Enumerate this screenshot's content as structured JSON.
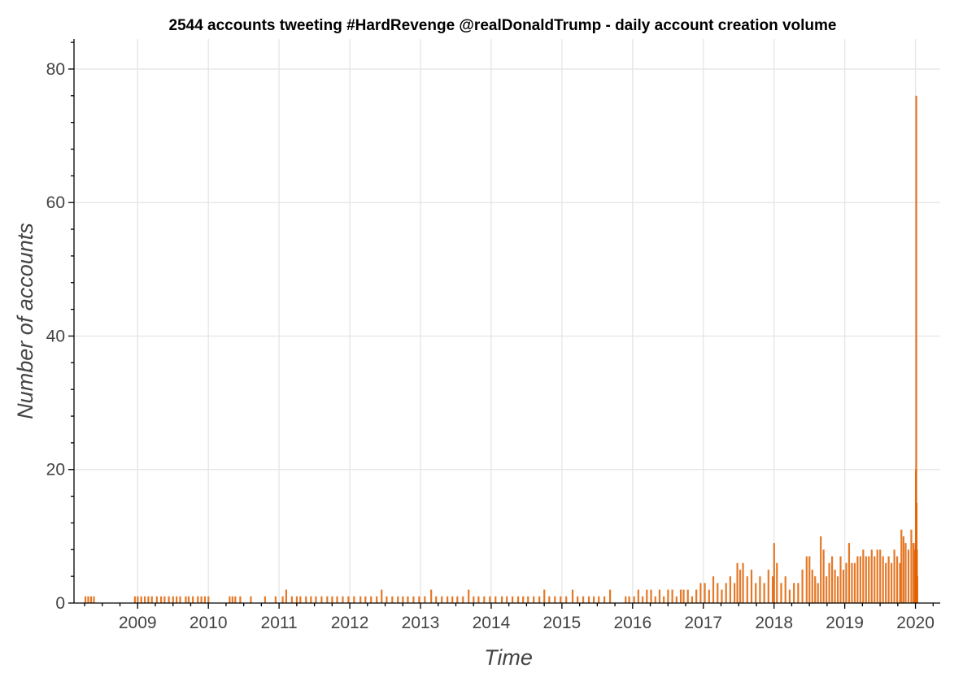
{
  "chart_data": {
    "type": "bar",
    "title": "2544 accounts tweeting #HardRevenge @realDonaldTrump - daily account creation volume",
    "xlabel": "Time",
    "ylabel": "Number of accounts",
    "x_unit": "year (fractional)",
    "xlim": [
      2008.1,
      2020.35
    ],
    "ylim": [
      0,
      84.5
    ],
    "x_ticks": [
      2009,
      2010,
      2011,
      2012,
      2013,
      2014,
      2015,
      2016,
      2017,
      2018,
      2019,
      2020
    ],
    "x_tick_labels": [
      "2009",
      "2010",
      "2011",
      "2012",
      "2013",
      "2014",
      "2015",
      "2016",
      "2017",
      "2018",
      "2019",
      "2020"
    ],
    "y_ticks": [
      0,
      20,
      40,
      60,
      80
    ],
    "y_tick_labels": [
      "0",
      "20",
      "40",
      "60",
      "80"
    ],
    "grid": true,
    "legend": "none",
    "bar_color": "#e06000",
    "series": [
      {
        "name": "daily account creation",
        "x": [
          2008.26,
          2008.3,
          2008.34,
          2008.38,
          2008.96,
          2009.0,
          2009.05,
          2009.1,
          2009.15,
          2009.2,
          2009.27,
          2009.33,
          2009.38,
          2009.44,
          2009.5,
          2009.55,
          2009.6,
          2009.68,
          2009.72,
          2009.78,
          2009.85,
          2009.9,
          2009.95,
          2010.0,
          2010.3,
          2010.34,
          2010.38,
          2010.45,
          2010.6,
          2010.8,
          2010.95,
          2011.05,
          2011.1,
          2011.18,
          2011.25,
          2011.3,
          2011.38,
          2011.45,
          2011.52,
          2011.6,
          2011.68,
          2011.75,
          2011.82,
          2011.9,
          2011.98,
          2012.06,
          2012.15,
          2012.22,
          2012.3,
          2012.38,
          2012.45,
          2012.52,
          2012.6,
          2012.68,
          2012.75,
          2012.82,
          2012.9,
          2012.98,
          2013.06,
          2013.15,
          2013.22,
          2013.3,
          2013.38,
          2013.45,
          2013.52,
          2013.6,
          2013.68,
          2013.75,
          2013.82,
          2013.9,
          2013.98,
          2014.06,
          2014.15,
          2014.22,
          2014.3,
          2014.38,
          2014.45,
          2014.52,
          2014.6,
          2014.68,
          2014.75,
          2014.82,
          2014.9,
          2014.98,
          2015.06,
          2015.15,
          2015.22,
          2015.3,
          2015.38,
          2015.45,
          2015.52,
          2015.6,
          2015.68,
          2015.9,
          2015.95,
          2016.02,
          2016.08,
          2016.14,
          2016.2,
          2016.26,
          2016.32,
          2016.38,
          2016.44,
          2016.5,
          2016.56,
          2016.62,
          2016.68,
          2016.72,
          2016.78,
          2016.84,
          2016.9,
          2016.96,
          2017.02,
          2017.08,
          2017.14,
          2017.2,
          2017.26,
          2017.32,
          2017.38,
          2017.44,
          2017.48,
          2017.52,
          2017.56,
          2017.62,
          2017.68,
          2017.74,
          2017.8,
          2017.86,
          2017.92,
          2017.98,
          2018.0,
          2018.04,
          2018.1,
          2018.16,
          2018.22,
          2018.28,
          2018.34,
          2018.4,
          2018.46,
          2018.5,
          2018.54,
          2018.58,
          2018.62,
          2018.66,
          2018.7,
          2018.74,
          2018.78,
          2018.82,
          2018.86,
          2018.9,
          2018.94,
          2018.98,
          2019.02,
          2019.06,
          2019.1,
          2019.14,
          2019.18,
          2019.22,
          2019.26,
          2019.3,
          2019.34,
          2019.38,
          2019.42,
          2019.46,
          2019.5,
          2019.54,
          2019.58,
          2019.62,
          2019.66,
          2019.7,
          2019.74,
          2019.78,
          2019.8,
          2019.83,
          2019.86,
          2019.9,
          2019.94,
          2019.97,
          2019.99,
          2020.0,
          2020.005,
          2020.01,
          2020.015,
          2020.02,
          2020.025
        ],
        "values": [
          1,
          1,
          1,
          1,
          1,
          1,
          1,
          1,
          1,
          1,
          1,
          1,
          1,
          1,
          1,
          1,
          1,
          1,
          1,
          1,
          1,
          1,
          1,
          1,
          1,
          1,
          1,
          1,
          1,
          1,
          1,
          1,
          2,
          1,
          1,
          1,
          1,
          1,
          1,
          1,
          1,
          1,
          1,
          1,
          1,
          1,
          1,
          1,
          1,
          1,
          2,
          1,
          1,
          1,
          1,
          1,
          1,
          1,
          1,
          2,
          1,
          1,
          1,
          1,
          1,
          1,
          2,
          1,
          1,
          1,
          1,
          1,
          1,
          1,
          1,
          1,
          1,
          1,
          1,
          1,
          2,
          1,
          1,
          1,
          1,
          2,
          1,
          1,
          1,
          1,
          1,
          1,
          2,
          1,
          1,
          1,
          2,
          1,
          2,
          2,
          1,
          2,
          1,
          2,
          2,
          1,
          2,
          2,
          2,
          1,
          2,
          3,
          3,
          2,
          4,
          3,
          2,
          3,
          4,
          3,
          6,
          5,
          6,
          4,
          5,
          3,
          4,
          3,
          5,
          4,
          9,
          6,
          3,
          4,
          2,
          3,
          3,
          5,
          7,
          7,
          5,
          4,
          3,
          10,
          8,
          4,
          6,
          7,
          5,
          4,
          7,
          5,
          6,
          9,
          6,
          6,
          7,
          7,
          8,
          7,
          7,
          8,
          7,
          8,
          8,
          7,
          6,
          7,
          6,
          8,
          7,
          6,
          11,
          10,
          9,
          8,
          11,
          9,
          8,
          9,
          20,
          76,
          15,
          8,
          4
        ]
      }
    ]
  }
}
